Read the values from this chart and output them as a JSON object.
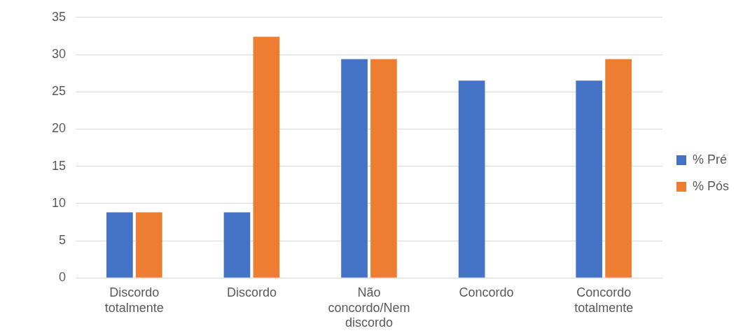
{
  "chart_data": {
    "type": "bar",
    "categories": [
      "Discordo totalmente",
      "Discordo",
      "Não concordo/Nem discordo",
      "Concordo",
      "Concordo totalmente"
    ],
    "series": [
      {
        "name": "% Pré",
        "color": "#4472c4",
        "values": [
          8.8,
          8.8,
          29.4,
          26.5,
          26.5
        ]
      },
      {
        "name": "% Pós",
        "color": "#ed7d31",
        "values": [
          8.8,
          32.4,
          29.4,
          0,
          29.4
        ]
      }
    ],
    "ylim": [
      0,
      35
    ],
    "yticks": [
      0,
      5,
      10,
      15,
      20,
      25,
      30,
      35
    ],
    "grid": "y",
    "legend": "right"
  }
}
